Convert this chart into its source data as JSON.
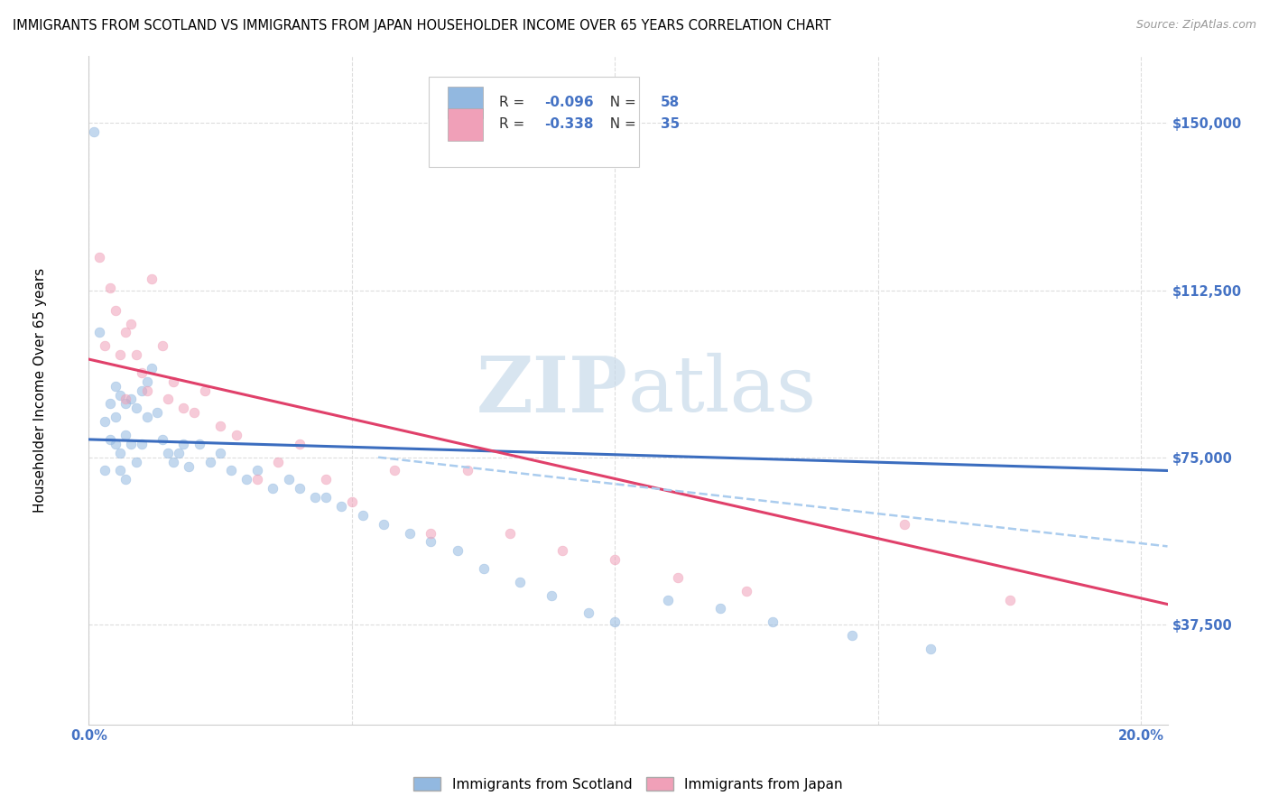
{
  "title": "IMMIGRANTS FROM SCOTLAND VS IMMIGRANTS FROM JAPAN HOUSEHOLDER INCOME OVER 65 YEARS CORRELATION CHART",
  "source": "Source: ZipAtlas.com",
  "ylabel": "Householder Income Over 65 years",
  "xlim": [
    0.0,
    0.205
  ],
  "ylim": [
    15000,
    165000
  ],
  "yticks": [
    37500,
    75000,
    112500,
    150000
  ],
  "ytick_labels": [
    "$37,500",
    "$75,000",
    "$112,500",
    "$150,000"
  ],
  "xticks": [
    0.0,
    0.05,
    0.1,
    0.15,
    0.2
  ],
  "xtick_labels": [
    "0.0%",
    "",
    "",
    "",
    "20.0%"
  ],
  "background_color": "#ffffff",
  "grid_color": "#dddddd",
  "scotland_color": "#92b8e0",
  "scotland_line_color": "#3b6dbf",
  "japan_color": "#f0a0b8",
  "japan_line_color": "#e0406a",
  "dash_color": "#aaccee",
  "scotland_R": -0.096,
  "scotland_N": 58,
  "japan_R": -0.338,
  "japan_N": 35,
  "scotland_scatter_x": [
    0.001,
    0.002,
    0.003,
    0.003,
    0.004,
    0.004,
    0.005,
    0.005,
    0.005,
    0.006,
    0.006,
    0.006,
    0.007,
    0.007,
    0.007,
    0.008,
    0.008,
    0.009,
    0.009,
    0.01,
    0.01,
    0.011,
    0.011,
    0.012,
    0.013,
    0.014,
    0.015,
    0.016,
    0.017,
    0.018,
    0.019,
    0.021,
    0.023,
    0.025,
    0.027,
    0.03,
    0.032,
    0.035,
    0.038,
    0.04,
    0.043,
    0.045,
    0.048,
    0.052,
    0.056,
    0.061,
    0.065,
    0.07,
    0.075,
    0.082,
    0.088,
    0.095,
    0.1,
    0.11,
    0.12,
    0.13,
    0.145,
    0.16
  ],
  "scotland_scatter_y": [
    148000,
    103000,
    83000,
    72000,
    87000,
    79000,
    91000,
    84000,
    78000,
    89000,
    76000,
    72000,
    87000,
    80000,
    70000,
    88000,
    78000,
    86000,
    74000,
    90000,
    78000,
    92000,
    84000,
    95000,
    85000,
    79000,
    76000,
    74000,
    76000,
    78000,
    73000,
    78000,
    74000,
    76000,
    72000,
    70000,
    72000,
    68000,
    70000,
    68000,
    66000,
    66000,
    64000,
    62000,
    60000,
    58000,
    56000,
    54000,
    50000,
    47000,
    44000,
    40000,
    38000,
    43000,
    41000,
    38000,
    35000,
    32000
  ],
  "japan_scatter_x": [
    0.002,
    0.003,
    0.004,
    0.005,
    0.006,
    0.007,
    0.007,
    0.008,
    0.009,
    0.01,
    0.011,
    0.012,
    0.014,
    0.015,
    0.016,
    0.018,
    0.02,
    0.022,
    0.025,
    0.028,
    0.032,
    0.036,
    0.04,
    0.045,
    0.05,
    0.058,
    0.065,
    0.072,
    0.08,
    0.09,
    0.1,
    0.112,
    0.125,
    0.155,
    0.175
  ],
  "japan_scatter_y": [
    120000,
    100000,
    113000,
    108000,
    98000,
    103000,
    88000,
    105000,
    98000,
    94000,
    90000,
    115000,
    100000,
    88000,
    92000,
    86000,
    85000,
    90000,
    82000,
    80000,
    70000,
    74000,
    78000,
    70000,
    65000,
    72000,
    58000,
    72000,
    58000,
    54000,
    52000,
    48000,
    45000,
    60000,
    43000
  ],
  "scotland_trend_x": [
    0.0,
    0.205
  ],
  "scotland_trend_y": [
    79000,
    72000
  ],
  "japan_trend_x": [
    0.0,
    0.205
  ],
  "japan_trend_y": [
    97000,
    42000
  ],
  "dash_trend_x": [
    0.055,
    0.205
  ],
  "dash_trend_y": [
    75000,
    55000
  ],
  "dot_size": 60,
  "dot_alpha": 0.55,
  "line_width": 2.2,
  "title_fontsize": 10.5,
  "ylabel_fontsize": 11,
  "tick_fontsize": 10.5,
  "tick_color": "#4472c4",
  "legend_label_color": "#333333",
  "legend_value_color": "#4472c4",
  "watermark_color": "#c8daea",
  "bottom_legend_labels": [
    "Immigrants from Scotland",
    "Immigrants from Japan"
  ]
}
